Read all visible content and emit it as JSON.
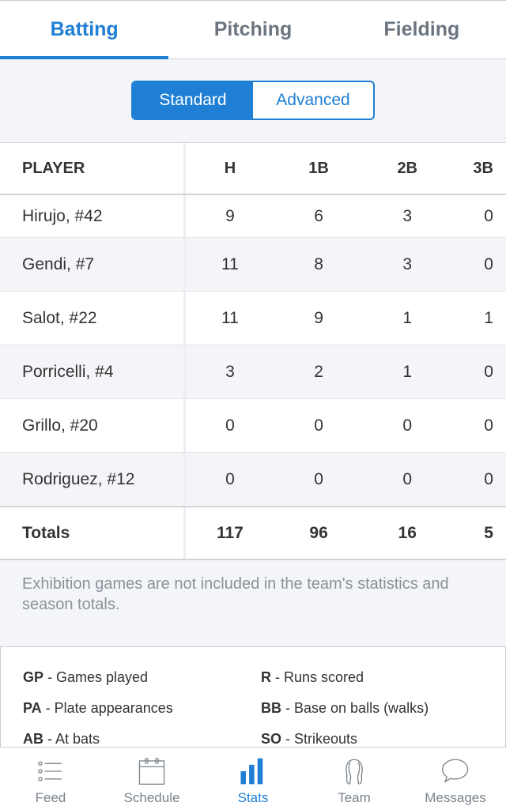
{
  "tabs": [
    {
      "label": "Batting",
      "active": true
    },
    {
      "label": "Pitching"
    },
    {
      "label": "Fielding"
    }
  ],
  "segment": {
    "options": [
      "Standard",
      "Advanced"
    ],
    "selected": "Standard"
  },
  "table": {
    "columns": [
      "PLAYER",
      "H",
      "1B",
      "2B",
      "3B"
    ],
    "rows": [
      [
        "Hirujo, #42",
        "9",
        "6",
        "3",
        "0"
      ],
      [
        "Gendi, #7",
        "11",
        "8",
        "3",
        "0"
      ],
      [
        "Salot, #22",
        "11",
        "9",
        "1",
        "1"
      ],
      [
        "Porricelli, #4",
        "3",
        "2",
        "1",
        "0"
      ],
      [
        "Grillo, #20",
        "0",
        "0",
        "0",
        "0"
      ],
      [
        "Rodriguez, #12",
        "0",
        "0",
        "0",
        "0"
      ]
    ],
    "totals": [
      "Totals",
      "117",
      "96",
      "16",
      "5"
    ]
  },
  "note": "Exhibition games are not included in the team's statistics and season totals.",
  "legend": [
    {
      "abbr": "GP",
      "desc": " - Games played"
    },
    {
      "abbr": "R",
      "desc": " - Runs scored"
    },
    {
      "abbr": "PA",
      "desc": " - Plate appearances"
    },
    {
      "abbr": "BB",
      "desc": " - Base on balls (walks)"
    },
    {
      "abbr": "AB",
      "desc": " - At bats"
    },
    {
      "abbr": "SO",
      "desc": " - Strikeouts"
    }
  ],
  "nav": [
    {
      "label": "Feed",
      "icon": "list-icon"
    },
    {
      "label": "Schedule",
      "icon": "calendar-icon"
    },
    {
      "label": "Stats",
      "icon": "bar-chart-icon",
      "active": true
    },
    {
      "label": "Team",
      "icon": "team-icon"
    },
    {
      "label": "Messages",
      "icon": "speech-bubble-icon"
    }
  ],
  "colors": {
    "accent": "#1f7fd4",
    "inactive": "#6b7580",
    "background": "#f4f5f8"
  }
}
